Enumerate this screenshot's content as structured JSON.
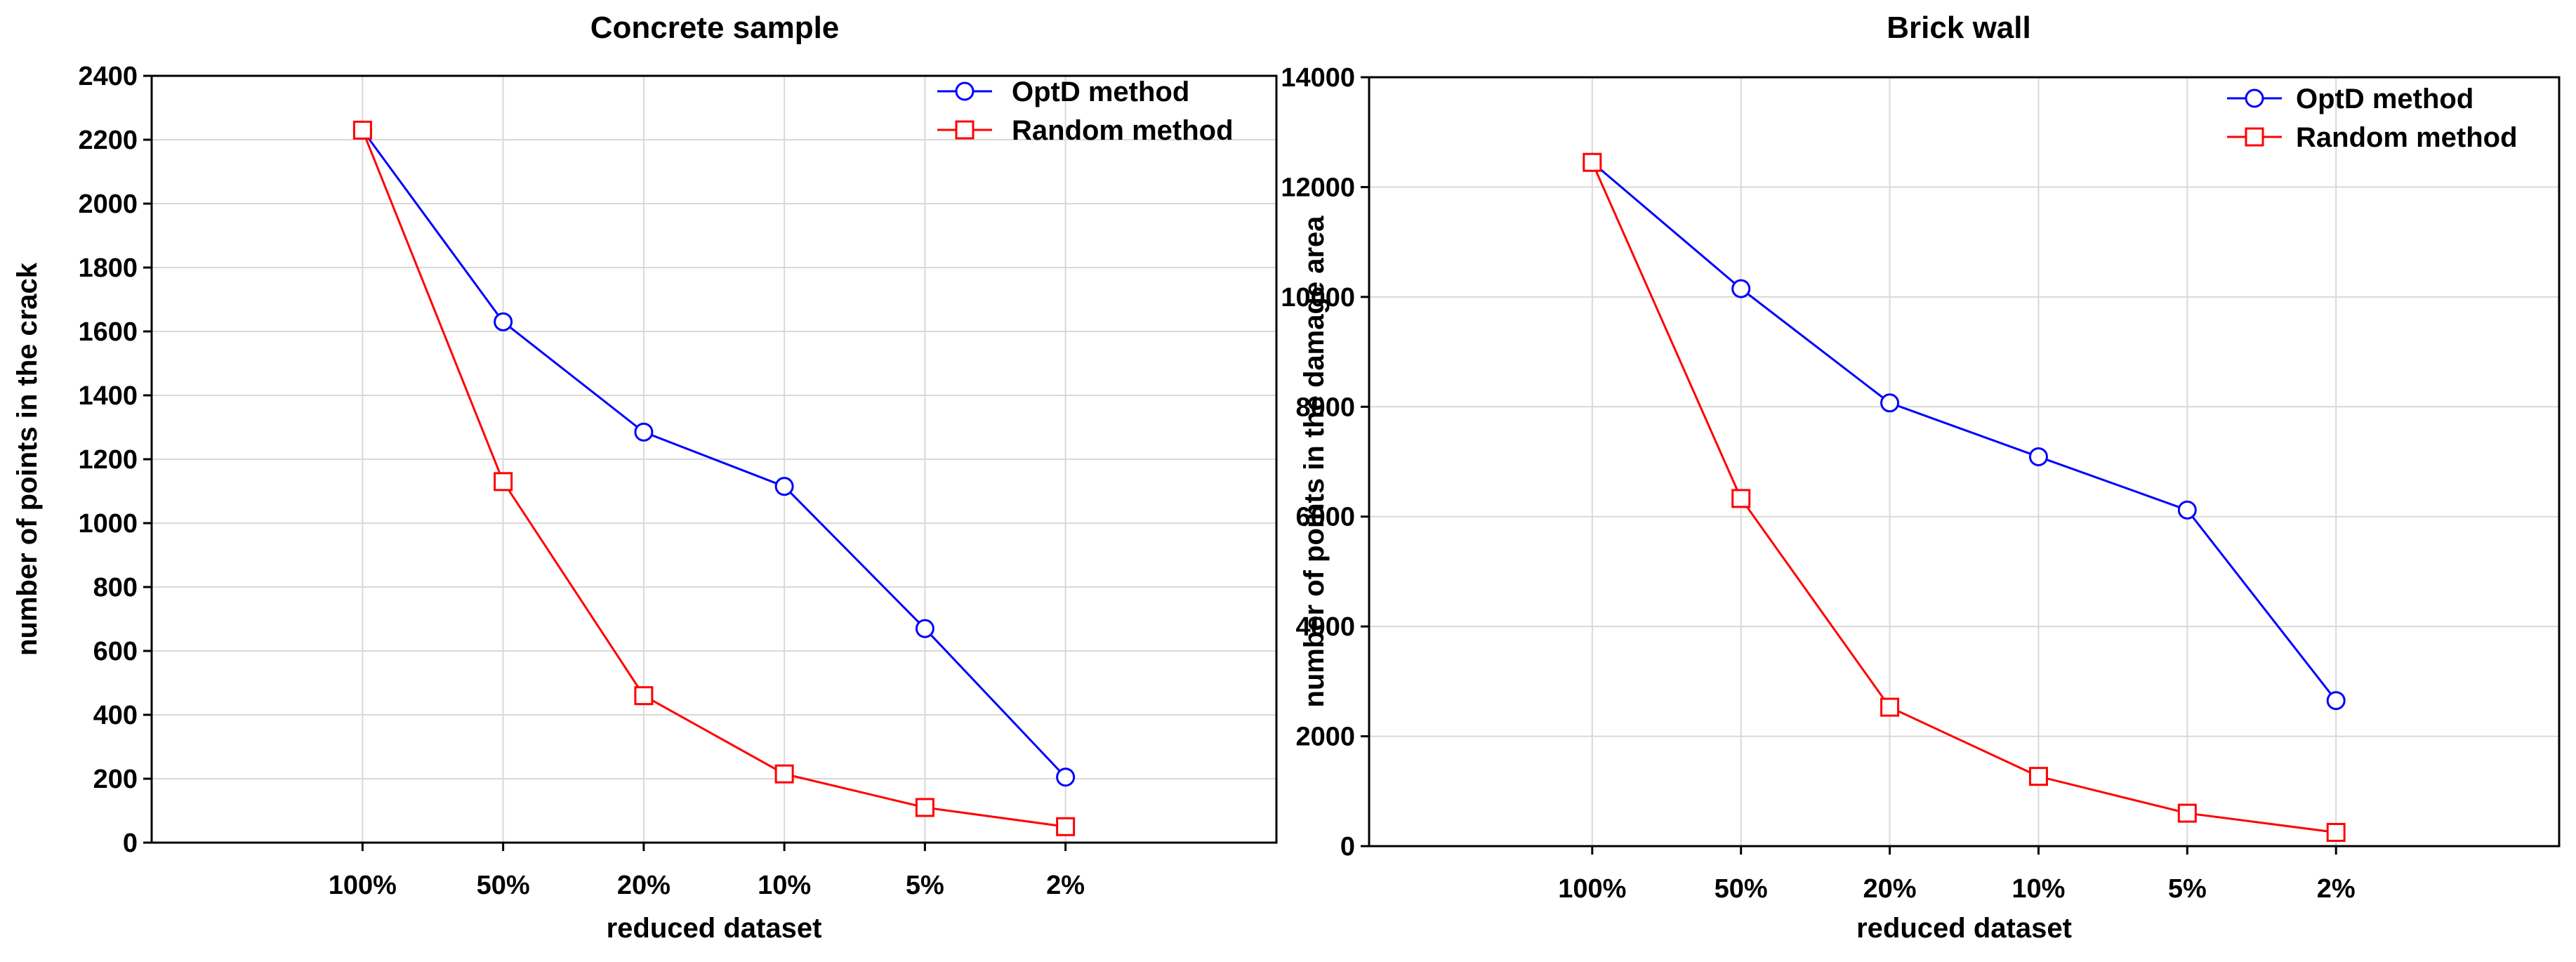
{
  "chart_data": [
    {
      "type": "line",
      "title": "Concrete sample",
      "xlabel": "reduced dataset",
      "ylabel": "number of points in the crack",
      "categories": [
        "100%",
        "50%",
        "20%",
        "10%",
        "5%",
        "2%"
      ],
      "ylim": [
        0,
        2400
      ],
      "yticks": [
        0,
        200,
        400,
        600,
        800,
        1000,
        1200,
        1400,
        1600,
        1800,
        2000,
        2200,
        2400
      ],
      "grid": true,
      "legend_position": "top-right",
      "series": [
        {
          "name": "OptD method",
          "color": "#0000ff",
          "marker": "circle",
          "values": [
            2230,
            1630,
            1285,
            1115,
            670,
            205
          ]
        },
        {
          "name": "Random method",
          "color": "#ff0000",
          "marker": "square",
          "values": [
            2230,
            1130,
            460,
            215,
            110,
            50
          ]
        }
      ]
    },
    {
      "type": "line",
      "title": "Brick wall",
      "xlabel": "reduced dataset",
      "ylabel": "number of points in the damage area",
      "categories": [
        "100%",
        "50%",
        "20%",
        "10%",
        "5%",
        "2%"
      ],
      "ylim": [
        0,
        14000
      ],
      "yticks": [
        0,
        2000,
        4000,
        6000,
        8000,
        10000,
        12000,
        14000
      ],
      "grid": true,
      "legend_position": "top-right",
      "series": [
        {
          "name": "OptD method",
          "color": "#0000ff",
          "marker": "circle",
          "values": [
            12450,
            10150,
            8070,
            7090,
            6120,
            2650
          ]
        },
        {
          "name": "Random method",
          "color": "#ff0000",
          "marker": "square",
          "values": [
            12450,
            6330,
            2530,
            1270,
            600,
            250
          ]
        }
      ]
    }
  ]
}
